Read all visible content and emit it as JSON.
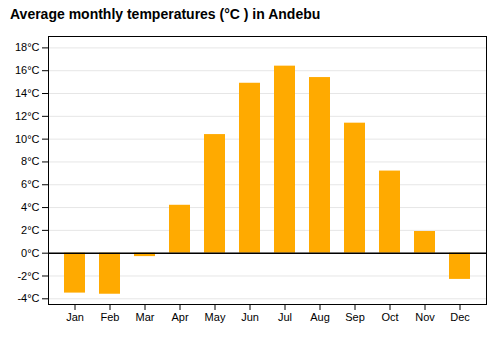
{
  "chart_data": {
    "type": "bar",
    "title": "Average monthly temperatures (°C ) in Andebu",
    "categories": [
      "Jan",
      "Feb",
      "Mar",
      "Apr",
      "May",
      "Jun",
      "Jul",
      "Aug",
      "Sep",
      "Oct",
      "Nov",
      "Dec"
    ],
    "values": [
      -3.5,
      -3.6,
      -0.3,
      4.2,
      10.4,
      14.9,
      16.4,
      15.4,
      11.4,
      7.2,
      1.9,
      -2.3
    ],
    "color": "#FFAA00",
    "ylim": [
      -4.5,
      19.0
    ],
    "yticks": [
      {
        "value": -4,
        "label": "-4°C"
      },
      {
        "value": -2,
        "label": "-2°C"
      },
      {
        "value": 0,
        "label": "0°C"
      },
      {
        "value": 2,
        "label": "2°C"
      },
      {
        "value": 4,
        "label": "4°C"
      },
      {
        "value": 6,
        "label": "6°C"
      },
      {
        "value": 8,
        "label": "8°C"
      },
      {
        "value": 10,
        "label": "10°C"
      },
      {
        "value": 12,
        "label": "12°C"
      },
      {
        "value": 14,
        "label": "14°C"
      },
      {
        "value": 16,
        "label": "16°C"
      },
      {
        "value": 18,
        "label": "18°C"
      }
    ],
    "grid": true
  }
}
